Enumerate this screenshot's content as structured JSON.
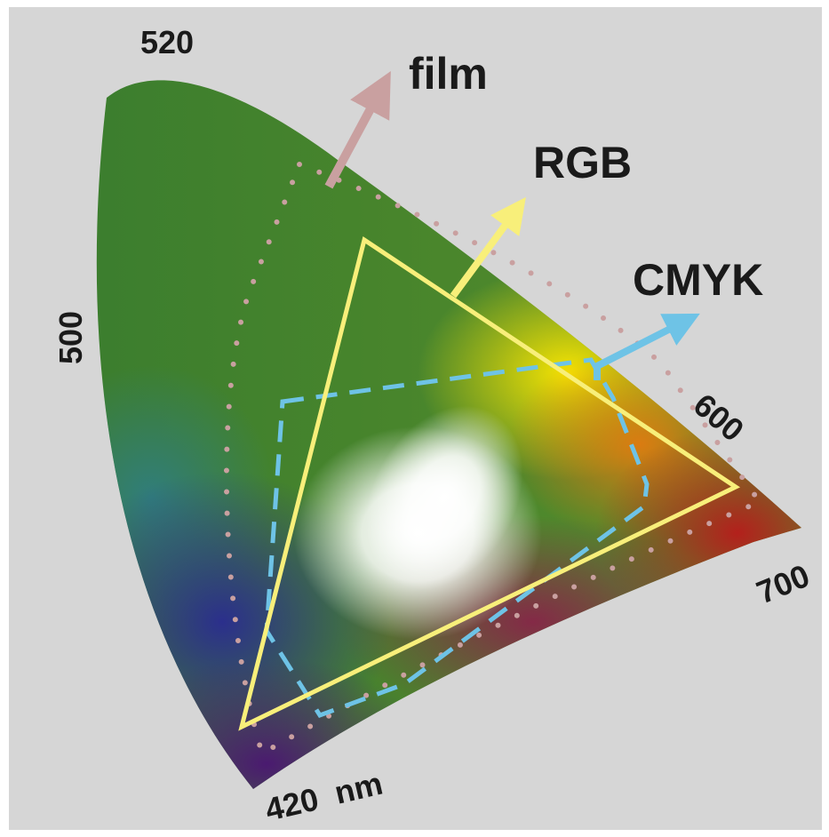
{
  "diagram": {
    "wavelength_labels": {
      "w520": "520",
      "w500": "500",
      "w600": "600",
      "w700": "700",
      "w420": "420",
      "unit": "nm"
    },
    "gamut_labels": {
      "film": "film",
      "rgb": "RGB",
      "cmyk": "CMYK"
    }
  },
  "colors": {
    "background": "#d6d6d6",
    "film": "#c9a0a0",
    "rgb": "#f8ef7a",
    "cmyk": "#6ec3e6"
  }
}
